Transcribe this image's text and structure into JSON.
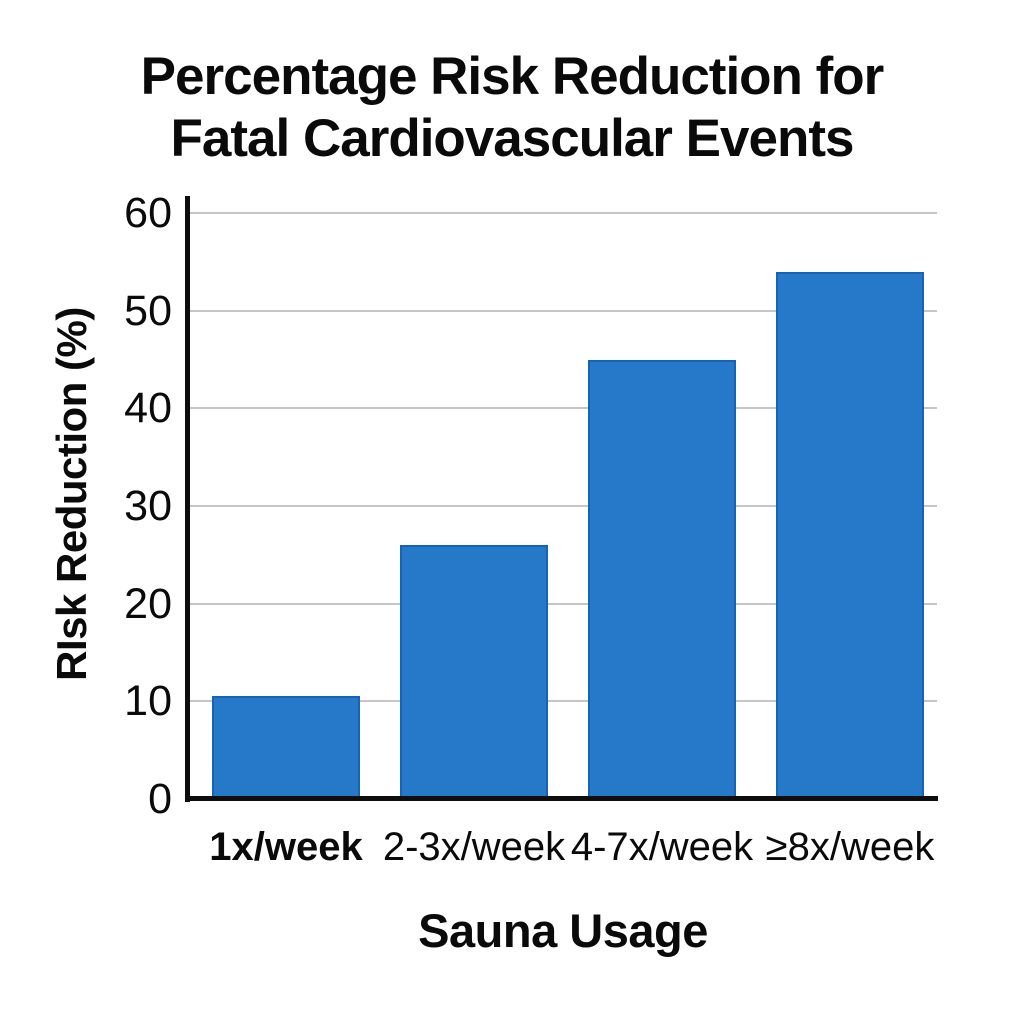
{
  "chart_data": {
    "type": "bar",
    "title": "Percentage Risk Reduction for Fatal Cardiovascular Events",
    "title_lines": [
      "Percentage Risk Reduction for",
      "Fatal Cardiovascular Events"
    ],
    "ylabel": "RIsk Reduction (%)",
    "xlabel": "Sauna Usage",
    "categories": [
      "1x/week",
      "2-3x/week",
      "4-7x/week",
      "≥8x/week"
    ],
    "values": [
      10.5,
      26,
      45,
      54
    ],
    "yticks": [
      0,
      10,
      20,
      30,
      40,
      50,
      60
    ],
    "ylim": [
      0,
      60
    ],
    "grid": "horizontal",
    "legend": "none",
    "emphasized_category_index": 0,
    "colors": {
      "bar_fill": "#2579c8",
      "bar_border": "#1563b2",
      "gridline": "#c6c6c6",
      "axis": "#0d0d0d",
      "text": "#0a0a0a"
    }
  }
}
